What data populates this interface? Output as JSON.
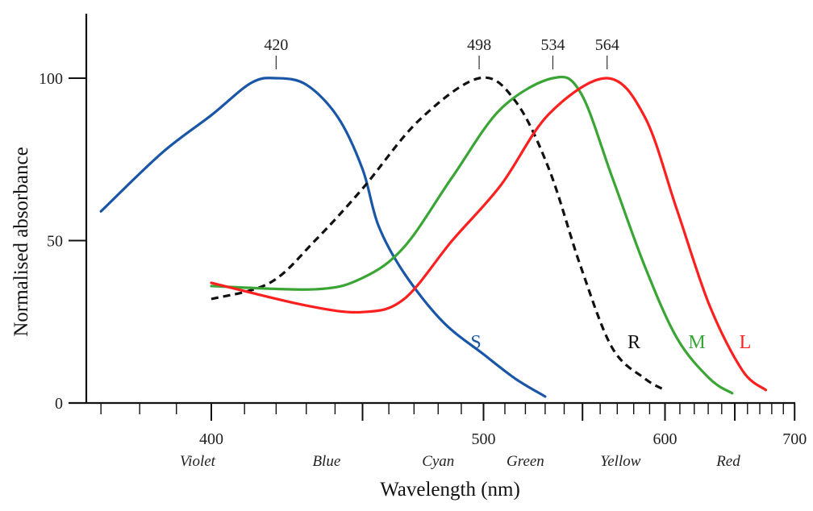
{
  "chart_data": {
    "type": "line",
    "xlabel": "Wavelength (nm)",
    "ylabel": "Normalised absorbance",
    "x_scale": "reciprocal",
    "xlim": [
      366,
      700
    ],
    "ylim": [
      0,
      120
    ],
    "x_ticks": [
      400,
      500,
      600,
      700
    ],
    "x_minor_step": 10,
    "y_ticks": [
      0,
      50,
      100
    ],
    "grid": false,
    "color_names": [
      {
        "label": "Violet",
        "wavelength": 396
      },
      {
        "label": "Blue",
        "wavelength": 437
      },
      {
        "label": "Cyan",
        "wavelength": 480
      },
      {
        "label": "Green",
        "wavelength": 520
      },
      {
        "label": "Yellow",
        "wavelength": 572
      },
      {
        "label": "Red",
        "wavelength": 645
      }
    ],
    "peaks": [
      {
        "label": "420",
        "x": 420
      },
      {
        "label": "498",
        "x": 498
      },
      {
        "label": "534",
        "x": 534
      },
      {
        "label": "564",
        "x": 564
      }
    ],
    "series": [
      {
        "name": "S",
        "color": "#1a56a8",
        "dashed": false,
        "x": [
          370,
          386,
          400,
          412,
          420,
          430,
          441,
          450,
          456,
          466,
          482,
          500,
          515,
          530
        ],
        "y": [
          59,
          77,
          88.6,
          98.5,
          100,
          98,
          88,
          72,
          54.6,
          40,
          25,
          15,
          7.5,
          2
        ]
      },
      {
        "name": "R",
        "color": "#111111",
        "dashed": true,
        "x": [
          400,
          418,
          433,
          450,
          472,
          498,
          515,
          532,
          549,
          567,
          587,
          600
        ],
        "y": [
          32,
          37,
          50,
          66,
          87,
          100,
          93,
          72,
          42,
          17,
          7.5,
          4
        ]
      },
      {
        "name": "M",
        "color": "#3aa535",
        "dashed": false,
        "x": [
          400,
          433,
          450,
          466,
          486,
          508,
          534,
          549,
          567,
          587,
          608,
          631,
          648
        ],
        "y": [
          36,
          35,
          38.5,
          48,
          69.5,
          90.5,
          100,
          95.5,
          69.5,
          42,
          20,
          7.5,
          3
        ]
      },
      {
        "name": "L",
        "color": "#ff1f1f",
        "dashed": false,
        "x": [
          400,
          430,
          450,
          466,
          486,
          508,
          532,
          564,
          587,
          608,
          631,
          656,
          675
        ],
        "y": [
          37,
          30,
          28,
          32,
          50,
          67,
          89,
          100,
          88,
          59.5,
          30,
          10,
          4
        ]
      }
    ]
  }
}
